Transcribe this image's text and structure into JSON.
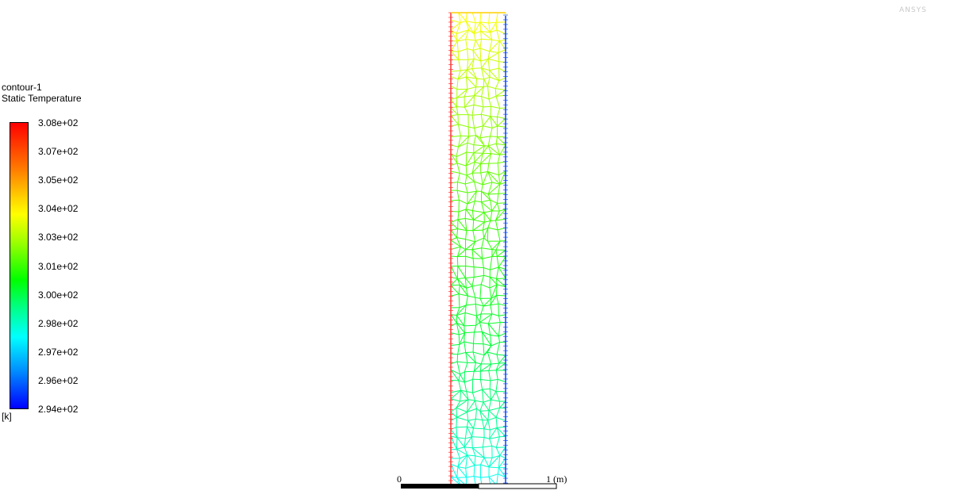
{
  "legend": {
    "title": "contour-1",
    "variable": "Static Temperature",
    "unit": "[k]",
    "ticks": [
      "3.08e+02",
      "3.07e+02",
      "3.05e+02",
      "3.04e+02",
      "3.03e+02",
      "3.01e+02",
      "3.00e+02",
      "2.98e+02",
      "2.97e+02",
      "2.96e+02",
      "2.94e+02"
    ]
  },
  "scale_bar": {
    "start_label": "0",
    "end_label": "1 (m)"
  },
  "logo": {
    "text": "ANSYS"
  },
  "colors": {
    "max": "#ff0000",
    "min": "#0000ff",
    "left_wall": "#ff3333",
    "right_wall": "#0044ff"
  }
}
